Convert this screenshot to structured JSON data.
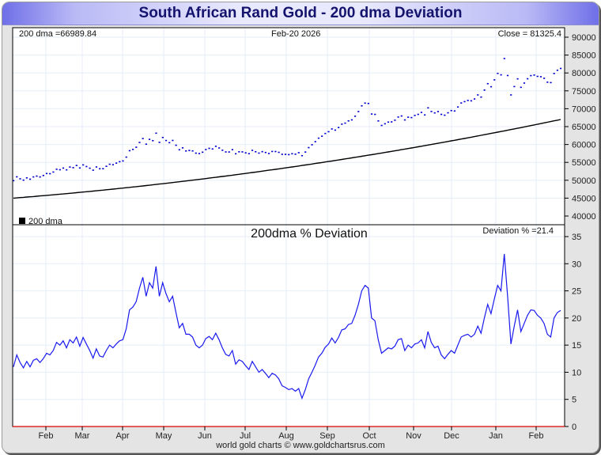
{
  "header": {
    "title": "South African Rand Gold - 200 dma Deviation"
  },
  "footer": {
    "credit": "world gold charts © www.goldchartsrus.com"
  },
  "colors": {
    "price": "#0000cc",
    "dma": "#000000",
    "deviation": "#1a1aee",
    "zero_line": "#dd0000",
    "grid": "#e4eef8"
  },
  "chart_data": [
    {
      "type": "scatter",
      "title": "South African Rand Gold",
      "info_left": "200 dma =66989.84",
      "info_center": "Feb-20  2026",
      "info_right": "Close = 81325.4",
      "legend": {
        "label": "200 dma",
        "placement": "bottom-left"
      },
      "ylim": [
        38000,
        92000
      ],
      "yticks": [
        40000,
        45000,
        50000,
        55000,
        60000,
        65000,
        70000,
        75000,
        80000,
        85000,
        90000
      ],
      "grid": true,
      "series": [
        {
          "name": "Close",
          "style": "dots",
          "derived_from": "dma * (1 + deviation/100)"
        },
        {
          "name": "200 dma",
          "style": "line",
          "start": 45000,
          "end": 66989.84
        }
      ]
    },
    {
      "type": "line",
      "title": "200dma  %  Deviation",
      "info_right": "Deviation % =21.4",
      "ylim": [
        0,
        35
      ],
      "yticks": [
        0,
        5,
        10,
        15,
        20,
        25,
        30,
        35
      ],
      "xticks": [
        "Feb",
        "Mar",
        "Apr",
        "May",
        "Jun",
        "Jul",
        "Aug",
        "Sep",
        "Oct",
        "Nov",
        "Dec",
        "Jan",
        "Feb"
      ],
      "grid": true,
      "series": [
        {
          "name": "Deviation %",
          "values": [
            11.0,
            13.2,
            11.8,
            10.8,
            12.0,
            11.0,
            12.2,
            12.5,
            11.8,
            12.5,
            13.5,
            13.2,
            14.0,
            15.5,
            15.0,
            15.8,
            14.5,
            16.0,
            15.4,
            16.5,
            14.8,
            16.4,
            15.2,
            14.0,
            12.6,
            14.3,
            13.0,
            12.8,
            14.0,
            15.0,
            14.5,
            15.2,
            15.8,
            16.0,
            18.0,
            21.5,
            22.0,
            23.0,
            25.5,
            27.5,
            24.0,
            26.5,
            25.5,
            29.5,
            24.0,
            26.5,
            24.5,
            23.0,
            24.0,
            21.0,
            18.2,
            19.0,
            17.0,
            17.0,
            16.5,
            15.0,
            14.5,
            15.0,
            16.2,
            16.6,
            16.0,
            17.2,
            16.0,
            14.5,
            13.3,
            13.0,
            14.0,
            11.5,
            12.3,
            12.0,
            11.2,
            10.5,
            12.0,
            11.0,
            10.0,
            10.5,
            9.8,
            9.0,
            9.8,
            9.5,
            8.8,
            7.5,
            7.2,
            6.8,
            7.0,
            6.5,
            7.0,
            5.2,
            6.8,
            8.8,
            10.0,
            11.3,
            12.8,
            13.5,
            14.6,
            15.2,
            16.3,
            15.4,
            16.4,
            17.8,
            18.0,
            18.8,
            19.0,
            20.5,
            22.5,
            25.0,
            26.0,
            25.5,
            20.0,
            19.5,
            16.0,
            13.5,
            14.0,
            14.5,
            14.3,
            14.8,
            16.0,
            16.2,
            14.0,
            15.0,
            14.5,
            15.2,
            15.4,
            16.0,
            14.5,
            17.5,
            15.5,
            14.5,
            14.8,
            13.2,
            12.5,
            13.3,
            14.0,
            13.5,
            15.0,
            16.5,
            16.8,
            17.0,
            16.5,
            17.0,
            18.5,
            17.2,
            20.0,
            22.5,
            20.8,
            23.5,
            26.0,
            25.0,
            31.8,
            24.0,
            15.2,
            18.5,
            21.5,
            17.5,
            19.0,
            20.5,
            21.5,
            21.4,
            20.5,
            20.0,
            19.0,
            17.0,
            16.5,
            20.0,
            21.0,
            21.4
          ]
        }
      ]
    }
  ]
}
